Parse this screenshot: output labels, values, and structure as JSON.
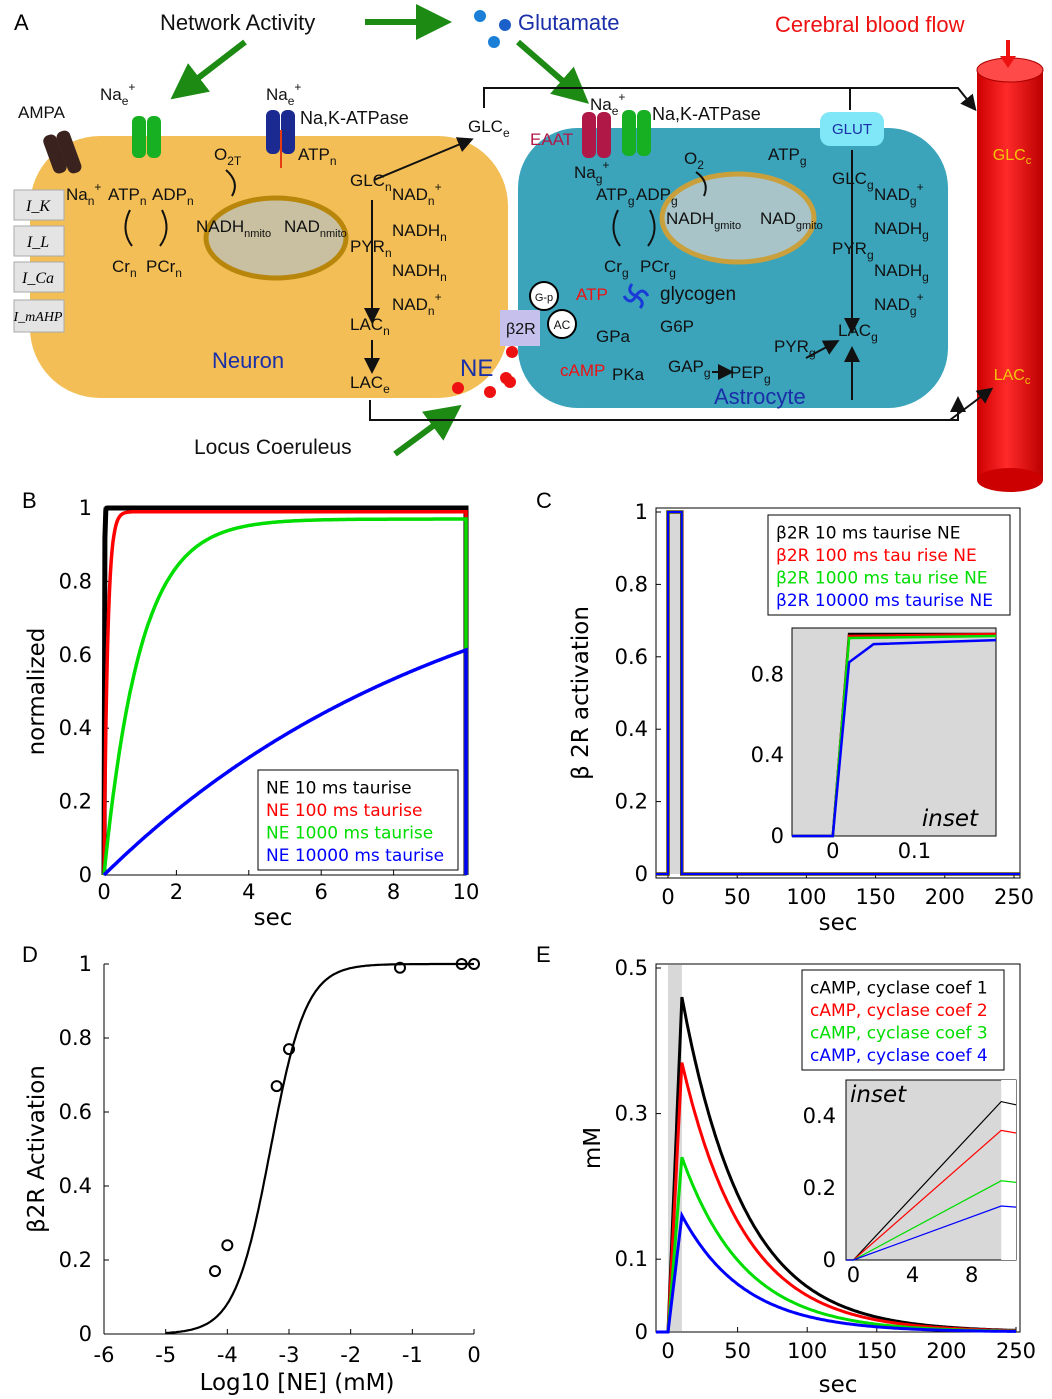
{
  "panelA": {
    "letter": "A",
    "network_activity": "Network Activity",
    "glutamate": "Glutamate",
    "cbf": "Cerebral blood flow",
    "ampa": "AMPA",
    "locus": "Locus Coeruleus",
    "ne": "NE",
    "neuron": "Neuron",
    "astrocyte": "Astrocyte",
    "eaat": "EAAT",
    "glut": "GLUT",
    "nak_n": "Na,K-ATPase",
    "nak_g": "Na,K-ATPase",
    "glycogen": "glycogen",
    "atp_red": "ATP",
    "camp": "cAMP",
    "b2r": "β2R",
    "ac": "AC",
    "gp": "G-p",
    "currents": [
      "I_K",
      "I_L",
      "I_Ca",
      "I_mAHP"
    ],
    "colors": {
      "neuron": "#f2be55",
      "astrocyte": "#3ba4bb",
      "vessel": "#ee1111",
      "arrow": "#1d8a14",
      "glut_blue": "#1a2fa8"
    }
  },
  "chart_data": [
    {
      "panel": "B",
      "type": "line",
      "xlabel": "sec",
      "ylabel": "normalized",
      "xlim": [
        0,
        10
      ],
      "ylim": [
        0,
        1
      ],
      "xticks": [
        "0",
        "2",
        "4",
        "6",
        "8",
        "10"
      ],
      "yticks": [
        "0",
        "0.2",
        "0.4",
        "0.6",
        "0.8",
        "1"
      ],
      "legend_position": "bottom-right",
      "series": [
        {
          "name": "NE 10 ms taurise",
          "color": "#000000",
          "tau_s": 0.01,
          "plateau": 1.0
        },
        {
          "name": "NE 100 ms taurise",
          "color": "#ff0000",
          "tau_s": 0.1,
          "plateau": 0.99
        },
        {
          "name": "NE 1000 ms taurise",
          "color": "#00dd00",
          "tau_s": 1.0,
          "plateau": 0.97
        },
        {
          "name": "NE 10000 ms taurise",
          "color": "#0000ff",
          "tau_s": 10.0,
          "plateau": 0.97
        }
      ]
    },
    {
      "panel": "C",
      "type": "line",
      "ylabel": "β 2R activation",
      "xlabel": "sec",
      "xlim": [
        0,
        250
      ],
      "ylim": [
        0,
        1
      ],
      "xticks": [
        "0",
        "50",
        "100",
        "150",
        "200",
        "250"
      ],
      "yticks": [
        "0",
        "0.2",
        "0.4",
        "0.6",
        "0.8",
        "1"
      ],
      "legend_position": "top-right",
      "series": [
        {
          "name": "β2R 10 ms taurise NE",
          "color": "#000000"
        },
        {
          "name": "β2R 100 ms tau rise NE",
          "color": "#ff0000"
        },
        {
          "name": "β2R 1000 ms tau rise NE",
          "color": "#00dd00"
        },
        {
          "name": "β2R 10000 ms taurise NE",
          "color": "#0000ff"
        }
      ],
      "pulse": {
        "start": 0,
        "end": 10,
        "level": 1
      },
      "inset": {
        "label": "inset",
        "xticks": [
          "0",
          "0.1"
        ],
        "yticks": [
          "0",
          "0.4",
          "0.8"
        ],
        "xlim": [
          -0.05,
          0.2
        ],
        "ylim": [
          0,
          1
        ],
        "series": [
          {
            "color": "#000000",
            "x": [
              -0.05,
              0.0,
              0.02,
              0.2
            ],
            "y": [
              0.0,
              0.0,
              1.0,
              1.0
            ]
          },
          {
            "color": "#ff0000",
            "x": [
              -0.05,
              0.0,
              0.02,
              0.2
            ],
            "y": [
              0.0,
              0.0,
              0.99,
              1.0
            ]
          },
          {
            "color": "#00dd00",
            "x": [
              -0.05,
              0.0,
              0.02,
              0.2
            ],
            "y": [
              0.0,
              0.0,
              0.98,
              0.99
            ]
          },
          {
            "color": "#0000ff",
            "x": [
              -0.05,
              0.0,
              0.02,
              0.05,
              0.2
            ],
            "y": [
              0.0,
              0.0,
              0.86,
              0.95,
              0.97
            ]
          }
        ]
      }
    },
    {
      "panel": "D",
      "type": "scatter",
      "xlabel": "Log10 [NE] (mM)",
      "ylabel": "β2R Activation",
      "xlim": [
        -6,
        0
      ],
      "ylim": [
        0,
        1
      ],
      "xticks": [
        "-6",
        "-5",
        "-4",
        "-3",
        "-2",
        "-1",
        "0"
      ],
      "yticks": [
        "0",
        "0.2",
        "0.4",
        "0.6",
        "0.8",
        "1"
      ],
      "fit": {
        "ec50_log": -3.3,
        "hill": 1.0,
        "x_start": -5
      },
      "points": [
        {
          "x": -4.2,
          "y": 0.17
        },
        {
          "x": -4.0,
          "y": 0.24
        },
        {
          "x": -3.2,
          "y": 0.67
        },
        {
          "x": -3.0,
          "y": 0.77
        },
        {
          "x": -1.2,
          "y": 0.99
        },
        {
          "x": -0.2,
          "y": 1.0
        },
        {
          "x": 0.0,
          "y": 1.0
        }
      ]
    },
    {
      "panel": "E",
      "type": "line",
      "xlabel": "sec",
      "ylabel": "mM",
      "xlim": [
        0,
        250
      ],
      "ylim": [
        0,
        0.5
      ],
      "xticks": [
        "0",
        "50",
        "100",
        "150",
        "200",
        "250"
      ],
      "yticks": [
        "0",
        "0.1",
        "0.3",
        "0.5"
      ],
      "legend_position": "top-right",
      "series": [
        {
          "name": "cAMP, cyclase coef 1",
          "color": "#000000",
          "peak": 0.46
        },
        {
          "name": "cAMP, cyclase coef 2",
          "color": "#ff0000",
          "peak": 0.37
        },
        {
          "name": "cAMP, cyclase coef 3",
          "color": "#00dd00",
          "peak": 0.24
        },
        {
          "name": "cAMP, cyclase coef 4",
          "color": "#0000ff",
          "peak": 0.16
        }
      ],
      "rise_s": 10,
      "decay_tau_s": 45,
      "inset": {
        "label": "inset",
        "xticks": [
          "0",
          "4",
          "8"
        ],
        "yticks": [
          "0",
          "0.2",
          "0.4"
        ],
        "xlim": [
          -0.5,
          11
        ],
        "ylim": [
          0,
          0.5
        ],
        "peaks": [
          0.44,
          0.36,
          0.22,
          0.15
        ]
      }
    }
  ],
  "panel_letters": {
    "B": "B",
    "C": "C",
    "D": "D",
    "E": "E"
  }
}
